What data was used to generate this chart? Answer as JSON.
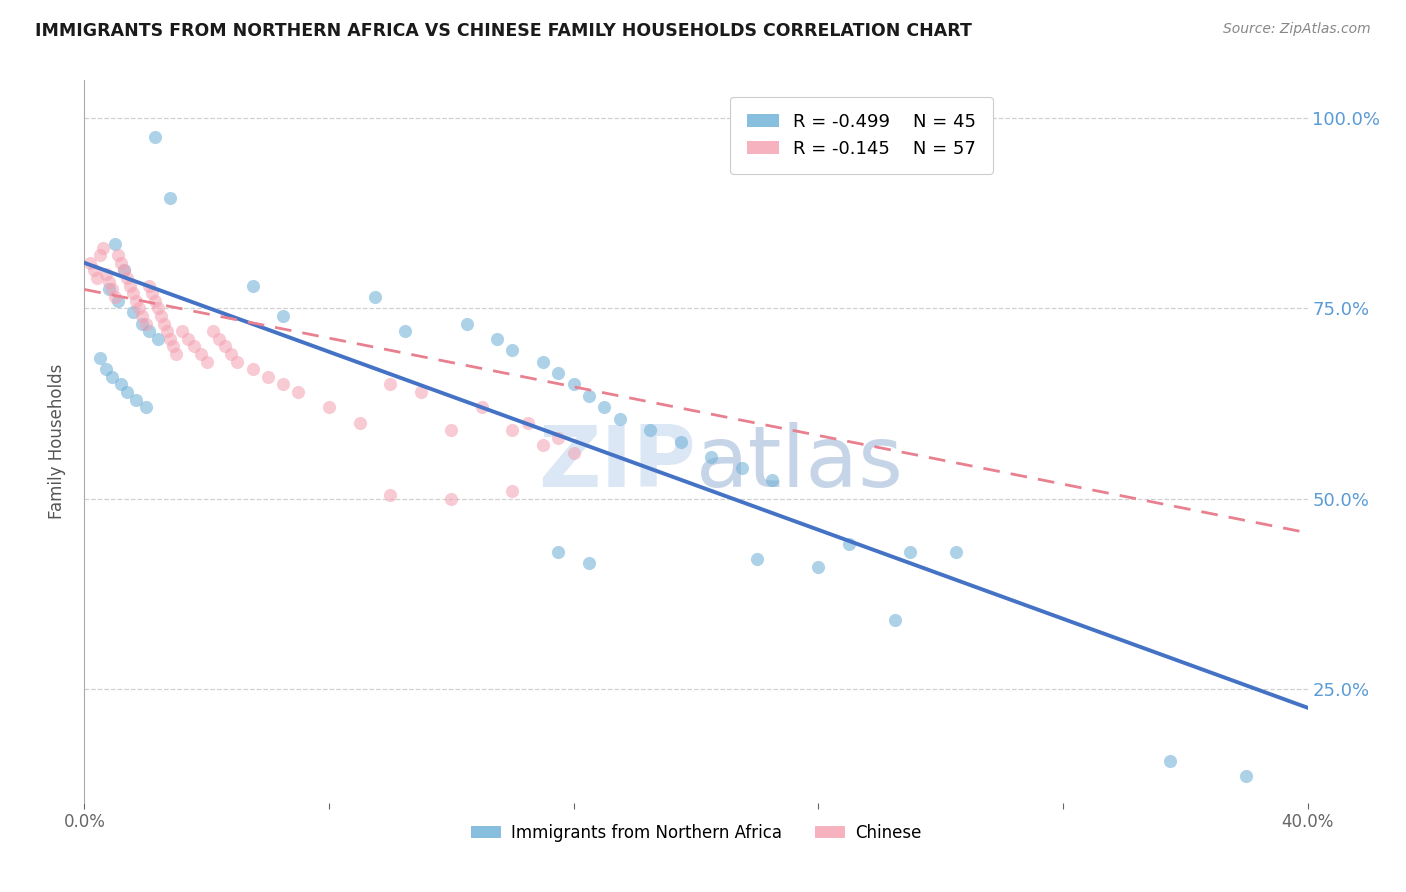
{
  "title": "IMMIGRANTS FROM NORTHERN AFRICA VS CHINESE FAMILY HOUSEHOLDS CORRELATION CHART",
  "source": "Source: ZipAtlas.com",
  "ylabel": "Family Households",
  "ytick_labels": [
    "100.0%",
    "75.0%",
    "50.0%",
    "25.0%"
  ],
  "ytick_values": [
    1.0,
    0.75,
    0.5,
    0.25
  ],
  "xmin": 0.0,
  "xmax": 0.4,
  "ymin": 0.1,
  "ymax": 1.05,
  "legend": {
    "series1": {
      "label": "Immigrants from Northern Africa",
      "R": "-0.499",
      "N": "45",
      "color": "#6baed6"
    },
    "series2": {
      "label": "Chinese",
      "R": "-0.145",
      "N": "57",
      "color": "#f4a0b0"
    }
  },
  "blue_scatter_x": [
    0.023,
    0.028,
    0.01,
    0.013,
    0.008,
    0.011,
    0.016,
    0.019,
    0.021,
    0.024,
    0.005,
    0.007,
    0.009,
    0.012,
    0.014,
    0.017,
    0.02,
    0.055,
    0.065,
    0.095,
    0.105,
    0.125,
    0.135,
    0.14,
    0.15,
    0.155,
    0.16,
    0.165,
    0.17,
    0.175,
    0.185,
    0.195,
    0.205,
    0.215,
    0.225,
    0.25,
    0.27,
    0.155,
    0.165,
    0.22,
    0.24,
    0.265,
    0.285,
    0.355,
    0.38
  ],
  "blue_scatter_y": [
    0.975,
    0.895,
    0.835,
    0.8,
    0.775,
    0.76,
    0.745,
    0.73,
    0.72,
    0.71,
    0.685,
    0.67,
    0.66,
    0.65,
    0.64,
    0.63,
    0.62,
    0.78,
    0.74,
    0.765,
    0.72,
    0.73,
    0.71,
    0.695,
    0.68,
    0.665,
    0.65,
    0.635,
    0.62,
    0.605,
    0.59,
    0.575,
    0.555,
    0.54,
    0.525,
    0.44,
    0.43,
    0.43,
    0.415,
    0.42,
    0.41,
    0.34,
    0.43,
    0.155,
    0.135
  ],
  "pink_scatter_x": [
    0.002,
    0.003,
    0.004,
    0.005,
    0.006,
    0.007,
    0.008,
    0.009,
    0.01,
    0.011,
    0.012,
    0.013,
    0.014,
    0.015,
    0.016,
    0.017,
    0.018,
    0.019,
    0.02,
    0.021,
    0.022,
    0.023,
    0.024,
    0.025,
    0.026,
    0.027,
    0.028,
    0.029,
    0.03,
    0.032,
    0.034,
    0.036,
    0.038,
    0.04,
    0.042,
    0.044,
    0.046,
    0.048,
    0.05,
    0.055,
    0.06,
    0.065,
    0.07,
    0.08,
    0.09,
    0.1,
    0.11,
    0.12,
    0.13,
    0.14,
    0.145,
    0.15,
    0.155,
    0.16,
    0.1,
    0.12,
    0.14
  ],
  "pink_scatter_y": [
    0.81,
    0.8,
    0.79,
    0.82,
    0.83,
    0.795,
    0.785,
    0.775,
    0.765,
    0.82,
    0.81,
    0.8,
    0.79,
    0.78,
    0.77,
    0.76,
    0.75,
    0.74,
    0.73,
    0.78,
    0.77,
    0.76,
    0.75,
    0.74,
    0.73,
    0.72,
    0.71,
    0.7,
    0.69,
    0.72,
    0.71,
    0.7,
    0.69,
    0.68,
    0.72,
    0.71,
    0.7,
    0.69,
    0.68,
    0.67,
    0.66,
    0.65,
    0.64,
    0.62,
    0.6,
    0.65,
    0.64,
    0.59,
    0.62,
    0.59,
    0.6,
    0.57,
    0.58,
    0.56,
    0.505,
    0.5,
    0.51
  ],
  "blue_line": {
    "x0": 0.0,
    "y0": 0.81,
    "x1": 0.4,
    "y1": 0.225
  },
  "pink_line": {
    "x0": 0.0,
    "y0": 0.775,
    "x1": 0.4,
    "y1": 0.455
  },
  "watermark_zip": "ZIP",
  "watermark_atlas": "atlas",
  "background_color": "#ffffff",
  "grid_color": "#d0d0d0",
  "scatter_alpha": 0.55,
  "scatter_size": 90,
  "watermark_color": "#c5d8f0",
  "watermark_alpha": 0.6
}
